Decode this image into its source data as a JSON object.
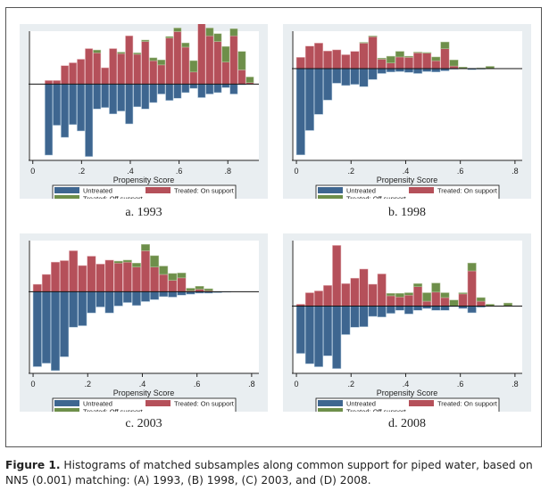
{
  "figure": {
    "caption_label": "Figure 1.",
    "caption_text": " Histograms of matched subsamples along common support for piped water, based on NN5 (0.001) matching: (A) 1993, (B) 1998, (C) 2003, and (D) 2008."
  },
  "colors": {
    "untreated": "#3e6690",
    "treated_on": "#b5505a",
    "treated_off": "#6e8f4a",
    "panel_bg": "#e9eef1",
    "plot_bg": "#ffffff"
  },
  "legend": {
    "untreated": "Untreated",
    "treated_on": "Treated: On support",
    "treated_off": "Treated: Off support"
  },
  "chart_data": [
    {
      "type": "bar",
      "panel_label": "a. 1993",
      "xlabel": "Propensity Score",
      "ylabel": "",
      "xlim": [
        -0.01,
        0.92
      ],
      "xticks": [
        0,
        0.2,
        0.4,
        0.6,
        0.8
      ],
      "xtick_labels": [
        "0",
        ".2",
        ".4",
        ".6",
        ".8"
      ],
      "bin_width": 0.033,
      "bin_starts": [
        0.05,
        0.083,
        0.116,
        0.149,
        0.182,
        0.215,
        0.248,
        0.281,
        0.314,
        0.347,
        0.38,
        0.413,
        0.446,
        0.479,
        0.512,
        0.545,
        0.578,
        0.611,
        0.644,
        0.677,
        0.71,
        0.743,
        0.776,
        0.809,
        0.842,
        0.875
      ],
      "series": [
        {
          "name": "Treated: On support",
          "values": [
            0.05,
            0.05,
            0.26,
            0.3,
            0.35,
            0.5,
            0.44,
            0.23,
            0.5,
            0.43,
            0.68,
            0.42,
            0.6,
            0.33,
            0.27,
            0.65,
            0.74,
            0.52,
            0.17,
            0.93,
            0.68,
            0.6,
            0.31,
            0.68,
            0.2,
            0.02
          ]
        },
        {
          "name": "Treated: Off support",
          "values": [
            0,
            0,
            0,
            0,
            0,
            0,
            0.04,
            0,
            0,
            0.02,
            0,
            0.02,
            0.02,
            0.04,
            0.07,
            0.02,
            0.05,
            0.06,
            0.16,
            0.06,
            0.11,
            0.11,
            0.22,
            0.1,
            0.26,
            0.08
          ]
        },
        {
          "name": "Untreated",
          "values": [
            -1.0,
            -0.58,
            -0.75,
            -0.57,
            -0.66,
            -1.02,
            -0.35,
            -0.33,
            -0.42,
            -0.38,
            -0.56,
            -0.32,
            -0.35,
            -0.26,
            -0.14,
            -0.23,
            -0.2,
            -0.12,
            -0.06,
            -0.19,
            -0.14,
            -0.12,
            -0.05,
            -0.14,
            -0.01,
            0
          ]
        }
      ],
      "ylim": [
        -1.05,
        0.72
      ]
    },
    {
      "type": "bar",
      "panel_label": "b. 1998",
      "xlabel": "Propensity Score",
      "ylabel": "",
      "xlim": [
        -0.01,
        0.82
      ],
      "xticks": [
        0,
        0.2,
        0.4,
        0.6,
        0.8
      ],
      "xtick_labels": [
        "0",
        ".2",
        ".4",
        ".6",
        ".8"
      ],
      "bin_width": 0.033,
      "bin_starts": [
        0.0,
        0.033,
        0.066,
        0.099,
        0.132,
        0.165,
        0.198,
        0.231,
        0.264,
        0.297,
        0.33,
        0.363,
        0.396,
        0.429,
        0.462,
        0.495,
        0.528,
        0.561,
        0.594,
        0.627,
        0.66,
        0.693
      ],
      "series": [
        {
          "name": "Treated: On support",
          "values": [
            0.3,
            0.6,
            0.68,
            0.47,
            0.5,
            0.37,
            0.46,
            0.68,
            0.85,
            0.25,
            0.15,
            0.31,
            0.3,
            0.42,
            0.41,
            0.21,
            0.53,
            0.07,
            0.0,
            0.0,
            0.0,
            0.0
          ]
        },
        {
          "name": "Treated: Off support",
          "values": [
            0,
            0,
            0,
            0,
            0,
            0,
            0,
            0.02,
            0.02,
            0.03,
            0.18,
            0.15,
            0.03,
            0.02,
            0.02,
            0.1,
            0.18,
            0.16,
            0.04,
            0,
            0.02,
            0.06
          ]
        },
        {
          "name": "Untreated",
          "values": [
            -2.3,
            -1.65,
            -1.22,
            -0.84,
            -0.39,
            -0.45,
            -0.42,
            -0.48,
            -0.29,
            -0.13,
            -0.09,
            -0.08,
            -0.1,
            -0.13,
            -0.08,
            -0.09,
            -0.06,
            -0.02,
            0,
            -0.03,
            -0.02,
            0
          ]
        }
      ],
      "ylim": [
        -2.4,
        0.95
      ]
    },
    {
      "type": "bar",
      "panel_label": "c. 2003",
      "xlabel": "Propensity Score",
      "ylabel": "",
      "xlim": [
        -0.01,
        0.82
      ],
      "xticks": [
        0,
        0.2,
        0.4,
        0.6,
        0.8
      ],
      "xtick_labels": [
        "0",
        ".2",
        ".4",
        ".6",
        ".8"
      ],
      "bin_width": 0.033,
      "bin_starts": [
        0.0,
        0.033,
        0.066,
        0.099,
        0.132,
        0.165,
        0.198,
        0.231,
        0.264,
        0.297,
        0.33,
        0.363,
        0.396,
        0.429,
        0.462,
        0.495,
        0.528,
        0.561,
        0.594,
        0.627,
        0.66,
        0.693
      ],
      "series": [
        {
          "name": "Treated: On support",
          "values": [
            0.15,
            0.35,
            0.6,
            0.63,
            0.83,
            0.53,
            0.72,
            0.56,
            0.64,
            0.58,
            0.6,
            0.5,
            0.83,
            0.5,
            0.35,
            0.23,
            0.28,
            0.02,
            0.05,
            0.02,
            0,
            0
          ]
        },
        {
          "name": "Treated: Off support",
          "values": [
            0,
            0,
            0,
            0,
            0,
            0,
            0,
            0,
            0,
            0.04,
            0.04,
            0.08,
            0.13,
            0.23,
            0.17,
            0.14,
            0.1,
            0.05,
            0.06,
            0.04,
            0,
            0
          ]
        },
        {
          "name": "Untreated",
          "values": [
            -1.52,
            -1.45,
            -1.6,
            -1.32,
            -0.72,
            -0.69,
            -0.43,
            -0.31,
            -0.43,
            -0.29,
            -0.22,
            -0.28,
            -0.2,
            -0.16,
            -0.1,
            -0.11,
            -0.07,
            -0.05,
            -0.03,
            -0.03,
            -0.02,
            -0.01
          ]
        }
      ],
      "ylim": [
        -1.62,
        1.0
      ]
    },
    {
      "type": "bar",
      "panel_label": "d. 2008",
      "xlabel": "Propensity Score",
      "ylabel": "",
      "xlim": [
        -0.01,
        0.82
      ],
      "xticks": [
        0,
        0.2,
        0.4,
        0.6,
        0.8
      ],
      "xtick_labels": [
        "0",
        ".2",
        ".4",
        ".6",
        ".8"
      ],
      "bin_width": 0.033,
      "bin_starts": [
        0.0,
        0.033,
        0.066,
        0.099,
        0.132,
        0.165,
        0.198,
        0.231,
        0.264,
        0.297,
        0.33,
        0.363,
        0.396,
        0.429,
        0.462,
        0.495,
        0.528,
        0.561,
        0.594,
        0.627,
        0.66,
        0.693,
        0.726,
        0.759
      ],
      "series": [
        {
          "name": "Treated: On support",
          "values": [
            0.03,
            0.22,
            0.25,
            0.34,
            1.0,
            0.37,
            0.46,
            0.61,
            0.36,
            0.53,
            0.17,
            0.15,
            0.18,
            0.32,
            0.08,
            0.23,
            0.14,
            0.0,
            0.2,
            0.58,
            0.08,
            0.0,
            0.0,
            0.0
          ]
        },
        {
          "name": "Treated: Off support",
          "values": [
            0,
            0,
            0,
            0,
            0,
            0,
            0,
            0,
            0,
            0,
            0.04,
            0.06,
            0.04,
            0.05,
            0.14,
            0.15,
            0.08,
            0.1,
            0.02,
            0.13,
            0.06,
            0.03,
            0,
            0.05
          ]
        },
        {
          "name": "Untreated",
          "values": [
            -0.78,
            -0.95,
            -1.0,
            -0.82,
            -1.03,
            -0.47,
            -0.35,
            -0.34,
            -0.17,
            -0.18,
            -0.12,
            -0.07,
            -0.13,
            -0.07,
            -0.04,
            -0.07,
            -0.07,
            -0.01,
            -0.04,
            -0.11,
            -0.02,
            0,
            0,
            0
          ]
        }
      ],
      "ylim": [
        -1.08,
        1.05
      ]
    }
  ]
}
